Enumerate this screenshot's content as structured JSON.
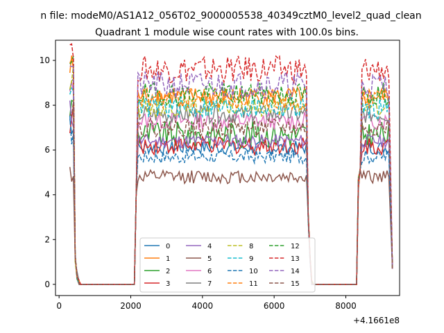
{
  "figure": {
    "suptitle": "n file: modeM0/AS1A12_056T02_9000005538_40349cztM0_level2_quad_clean",
    "title": "Quadrant 1 module wise count rates with 100.0s bins."
  },
  "chart_data": {
    "type": "line",
    "title": "Quadrant 1 module wise count rates with 100.0s bins.",
    "xlabel": "",
    "ylabel": "",
    "x_offset_label": "+4.1661e8",
    "xlim": [
      -100,
      9500
    ],
    "ylim": [
      -0.5,
      10.9
    ],
    "xticks": [
      0,
      2000,
      4000,
      6000,
      8000
    ],
    "xtick_labels": [
      "0",
      "2000",
      "4000",
      "6000",
      "8000"
    ],
    "yticks": [
      0,
      2,
      4,
      6,
      8,
      10
    ],
    "ytick_labels": [
      "0",
      "2",
      "4",
      "6",
      "8",
      "10"
    ],
    "grid": false,
    "legend_position": "lower-center",
    "legend_columns": 4,
    "segments": {
      "on1": [
        300,
        400
      ],
      "drop1": [
        [
          450,
          1.2
        ],
        [
          500,
          0.4
        ],
        [
          560,
          0
        ]
      ],
      "off1": [
        600,
        2100
      ],
      "rise1": [
        [
          2150,
          4.0
        ]
      ],
      "on2": [
        2200,
        6900
      ],
      "drop2": [
        [
          6950,
          3.0
        ],
        [
          7000,
          1.2
        ],
        [
          7050,
          0
        ]
      ],
      "off2": [
        7100,
        8300
      ],
      "rise2": [
        [
          8350,
          4.5
        ],
        [
          8400,
          5.0
        ]
      ],
      "on3": [
        8450,
        9200
      ],
      "end": [
        [
          9300,
          0.7
        ]
      ]
    },
    "series": [
      {
        "name": "0",
        "color": "#1f77b4",
        "dash": "solid",
        "level": 6.1,
        "noise": 0.15
      },
      {
        "name": "1",
        "color": "#ff7f0e",
        "dash": "solid",
        "level": 8.4,
        "noise": 0.2
      },
      {
        "name": "2",
        "color": "#2ca02c",
        "dash": "solid",
        "level": 6.7,
        "noise": 0.3
      },
      {
        "name": "3",
        "color": "#d62728",
        "dash": "solid",
        "level": 6.2,
        "noise": 0.2
      },
      {
        "name": "4",
        "color": "#9467bd",
        "dash": "solid",
        "level": 6.4,
        "noise": 0.15
      },
      {
        "name": "5",
        "color": "#8c564b",
        "dash": "solid",
        "level": 4.8,
        "noise": 0.15
      },
      {
        "name": "6",
        "color": "#e377c2",
        "dash": "solid",
        "level": 7.3,
        "noise": 0.2
      },
      {
        "name": "7",
        "color": "#7f7f7f",
        "dash": "solid",
        "level": 7.6,
        "noise": 0.2
      },
      {
        "name": "8",
        "color": "#bcbd22",
        "dash": "dashed",
        "level": 7.9,
        "noise": 0.2
      },
      {
        "name": "9",
        "color": "#17becf",
        "dash": "dashed",
        "level": 7.9,
        "noise": 0.25
      },
      {
        "name": "10",
        "color": "#1f77b4",
        "dash": "dashed",
        "level": 5.7,
        "noise": 0.15
      },
      {
        "name": "11",
        "color": "#ff7f0e",
        "dash": "dashed",
        "level": 8.3,
        "noise": 0.25
      },
      {
        "name": "12",
        "color": "#2ca02c",
        "dash": "dashed",
        "level": 8.5,
        "noise": 0.25
      },
      {
        "name": "13",
        "color": "#d62728",
        "dash": "dashed",
        "level": 9.6,
        "noise": 0.3
      },
      {
        "name": "14",
        "color": "#9467bd",
        "dash": "dashed",
        "level": 8.9,
        "noise": 0.3
      },
      {
        "name": "15",
        "color": "#8c564b",
        "dash": "dashed",
        "level": 7.0,
        "noise": 0.2
      }
    ]
  }
}
